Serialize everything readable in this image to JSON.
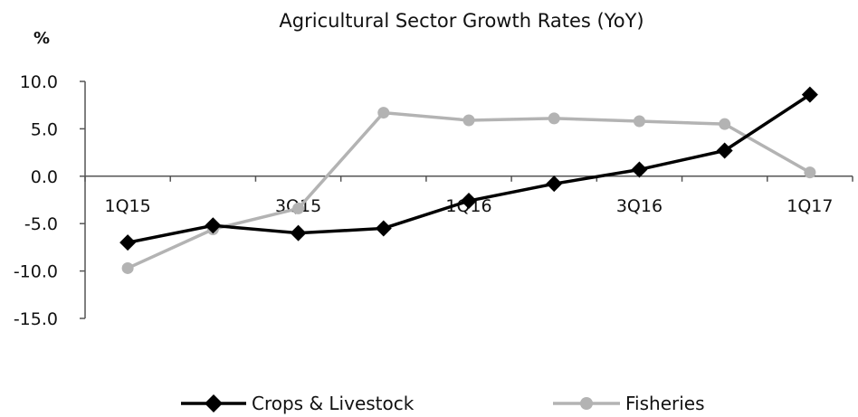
{
  "chart_data": {
    "type": "line",
    "title": "Agricultural Sector Growth Rates (YoY)",
    "ylabel": "%",
    "xlabel": "",
    "ylim": [
      -15,
      10
    ],
    "yticks": [
      "10.0",
      "5.0",
      "0.0",
      "-5.0",
      "-10.0",
      "-15.0"
    ],
    "ytick_values": [
      10,
      5,
      0,
      -5,
      -10,
      -15
    ],
    "categories": [
      "1Q15",
      "2Q15",
      "3Q15",
      "4Q15",
      "1Q16",
      "2Q16",
      "3Q16",
      "4Q16",
      "1Q17"
    ],
    "category_labels_shown": [
      "1Q15",
      "3Q15",
      "1Q16",
      "3Q16",
      "1Q17"
    ],
    "category_label_indices": [
      0,
      2,
      4,
      6,
      8
    ],
    "grid": false,
    "legend_position": "bottom",
    "series": [
      {
        "name": "Crops & Livestock",
        "color": "#000000",
        "marker": "diamond",
        "values": [
          -7.0,
          -5.2,
          -6.0,
          -5.5,
          -2.6,
          -0.8,
          0.7,
          2.7,
          8.6
        ]
      },
      {
        "name": "Fisheries",
        "color": "#b3b3b3",
        "marker": "circle",
        "values": [
          -9.7,
          -5.6,
          -3.4,
          6.7,
          5.9,
          6.1,
          5.8,
          5.5,
          0.4
        ]
      }
    ]
  }
}
